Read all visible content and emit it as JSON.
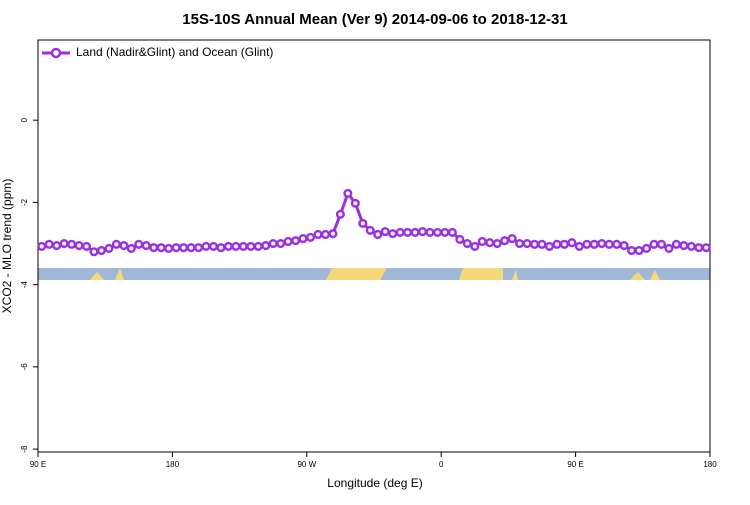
{
  "chart_data": {
    "type": "line",
    "title": "15S-10S Annual Mean (Ver 9)   2014-09-06 to 2018-12-31",
    "x_label": "Longitude (deg E)",
    "y_label": "XCO2 - MLO trend (ppm)",
    "x": [
      92.5,
      97.5,
      102.5,
      107.5,
      112.5,
      117.5,
      122.5,
      127.5,
      132.5,
      137.5,
      142.5,
      147.5,
      152.5,
      157.5,
      162.5,
      167.5,
      172.5,
      177.5,
      182.5,
      187.5,
      192.5,
      197.5,
      202.5,
      207.5,
      212.5,
      217.5,
      222.5,
      227.5,
      232.5,
      237.5,
      242.5,
      247.5,
      252.5,
      257.5,
      262.5,
      267.5,
      272.5,
      277.5,
      282.5,
      287.5,
      292.5,
      297.5,
      302.5,
      307.5,
      312.5,
      317.5,
      322.5,
      327.5,
      332.5,
      337.5,
      342.5,
      347.5,
      352.5,
      357.5,
      362.5,
      367.5,
      372.5,
      377.5,
      382.5,
      387.5,
      392.5,
      397.5,
      402.5,
      407.5,
      412.5,
      417.5,
      422.5,
      427.5,
      432.5,
      437.5,
      442.5,
      447.5,
      452.5,
      457.5,
      462.5,
      467.5,
      472.5,
      477.5,
      482.5,
      487.5,
      492.5,
      497.5,
      502.5,
      507.5,
      512.5,
      517.5,
      522.5,
      527.5,
      532.5,
      537.5
    ],
    "series": [
      {
        "name": "Land (Nadir&Glint) and Ocean (Glint)",
        "color": "#9b30e0",
        "values": [
          -3.07,
          -3.02,
          -3.05,
          -3.0,
          -3.02,
          -3.05,
          -3.07,
          -3.2,
          -3.17,
          -3.12,
          -3.02,
          -3.05,
          -3.12,
          -3.02,
          -3.05,
          -3.1,
          -3.1,
          -3.12,
          -3.1,
          -3.1,
          -3.1,
          -3.1,
          -3.07,
          -3.07,
          -3.1,
          -3.07,
          -3.07,
          -3.07,
          -3.07,
          -3.07,
          -3.05,
          -3.0,
          -3.0,
          -2.95,
          -2.93,
          -2.88,
          -2.85,
          -2.78,
          -2.78,
          -2.76,
          -2.29,
          -1.78,
          -2.02,
          -2.51,
          -2.68,
          -2.78,
          -2.71,
          -2.76,
          -2.73,
          -2.73,
          -2.73,
          -2.71,
          -2.73,
          -2.73,
          -2.73,
          -2.73,
          -2.9,
          -3.0,
          -3.07,
          -2.95,
          -2.98,
          -3.0,
          -2.93,
          -2.88,
          -3.0,
          -3.0,
          -3.02,
          -3.02,
          -3.07,
          -3.02,
          -3.02,
          -2.98,
          -3.07,
          -3.02,
          -3.02,
          -3.0,
          -3.02,
          -3.02,
          -3.05,
          -3.17,
          -3.17,
          -3.12,
          -3.02,
          -3.02,
          -3.12,
          -3.02,
          -3.05,
          -3.07,
          -3.1,
          -3.1
        ]
      }
    ],
    "xlim": [
      90,
      540
    ],
    "xticks": [
      {
        "value": 90,
        "label": "90 E"
      },
      {
        "value": 180,
        "label": "180"
      },
      {
        "value": 270,
        "label": "90 W"
      },
      {
        "value": 360,
        "label": "0"
      },
      {
        "value": 450,
        "label": "90 E"
      },
      {
        "value": 540,
        "label": "180"
      }
    ],
    "ylim": [
      -8.07,
      1.95
    ],
    "yticks": [
      0,
      -2,
      -4,
      -6,
      -8
    ],
    "legend": "top-left"
  }
}
